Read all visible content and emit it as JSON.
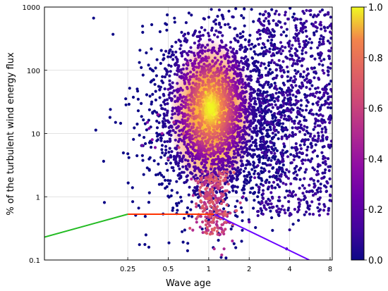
{
  "chart_data": {
    "type": "scatter",
    "title": "",
    "xlabel": "Wave age",
    "ylabel": "% of the turbulent wind energy flux",
    "x_scale": "log2",
    "y_scale": "log10",
    "xlim": [
      0.06,
      8.3
    ],
    "ylim": [
      0.1,
      1000
    ],
    "x_ticks": [
      0.25,
      0.5,
      1,
      2,
      4,
      8
    ],
    "x_tick_labels": [
      "0.25",
      "0.5",
      "1",
      "2",
      "4",
      "8"
    ],
    "y_ticks": [
      0.1,
      1,
      10,
      100,
      1000
    ],
    "y_tick_labels": [
      "0.1",
      "1",
      "10",
      "100",
      "1000"
    ],
    "grid": true,
    "colorbar": {
      "label": "",
      "range": [
        0,
        1
      ],
      "ticks": [
        0.0,
        0.2,
        0.4,
        0.6,
        0.8,
        1.0
      ],
      "tick_labels": [
        "0.0",
        "0.2",
        "0.4",
        "0.6",
        "0.8",
        "1.0"
      ],
      "colormap": "plasma"
    },
    "density_cloud": {
      "center_x": 1.05,
      "center_y": 25,
      "note_values": "points colored by normalized point density"
    },
    "scatter_points": [
      [
        1.0,
        30,
        1.0
      ],
      [
        1.1,
        20,
        1.0
      ],
      [
        0.95,
        45,
        0.97
      ],
      [
        1.2,
        15,
        0.96
      ],
      [
        0.9,
        12,
        0.93
      ],
      [
        1.05,
        60,
        0.92
      ],
      [
        0.85,
        25,
        0.9
      ],
      [
        1.3,
        35,
        0.88
      ],
      [
        0.8,
        8,
        0.85
      ],
      [
        1.15,
        8,
        0.86
      ],
      [
        1.0,
        5,
        0.82
      ],
      [
        0.75,
        18,
        0.8
      ],
      [
        1.35,
        60,
        0.75
      ],
      [
        0.7,
        40,
        0.72
      ],
      [
        1.25,
        90,
        0.7
      ],
      [
        1.05,
        3,
        0.7
      ],
      [
        0.65,
        10,
        0.68
      ],
      [
        1.5,
        20,
        0.62
      ],
      [
        0.6,
        6,
        0.6
      ],
      [
        0.95,
        2,
        0.62
      ],
      [
        1.1,
        1.5,
        0.6
      ],
      [
        1.0,
        1,
        0.58
      ],
      [
        1.15,
        0.8,
        0.55
      ],
      [
        1.05,
        0.5,
        0.52
      ],
      [
        0.98,
        0.3,
        0.5
      ],
      [
        1.2,
        0.25,
        0.45
      ],
      [
        1.3,
        0.15,
        0.48
      ],
      [
        1.25,
        0.12,
        0.52
      ],
      [
        1.5,
        0.2,
        0.45
      ],
      [
        1.4,
        0.4,
        0.4
      ],
      [
        0.55,
        15,
        0.5
      ],
      [
        0.5,
        4,
        0.45
      ],
      [
        0.45,
        10,
        0.4
      ],
      [
        0.42,
        20,
        0.38
      ],
      [
        0.38,
        8,
        0.35
      ],
      [
        0.35,
        15,
        0.3
      ],
      [
        0.4,
        6,
        0.32
      ],
      [
        0.36,
        12,
        0.3
      ],
      [
        0.7,
        130,
        0.4
      ],
      [
        0.8,
        150,
        0.45
      ],
      [
        1.0,
        160,
        0.5
      ],
      [
        1.3,
        170,
        0.4
      ],
      [
        1.6,
        120,
        0.35
      ],
      [
        1.8,
        60,
        0.3
      ],
      [
        2.0,
        30,
        0.25
      ],
      [
        1.7,
        8,
        0.35
      ],
      [
        1.5,
        3,
        0.35
      ],
      [
        1.8,
        1,
        0.3
      ],
      [
        2.2,
        2,
        0.2
      ],
      [
        2.5,
        5,
        0.18
      ],
      [
        2.8,
        15,
        0.15
      ],
      [
        3.0,
        40,
        0.12
      ],
      [
        3.5,
        80,
        0.1
      ],
      [
        4.0,
        200,
        0.08
      ],
      [
        5.0,
        400,
        0.05
      ],
      [
        6.0,
        700,
        0.03
      ],
      [
        7.0,
        900,
        0.02
      ],
      [
        4.5,
        30,
        0.1
      ],
      [
        5.5,
        8,
        0.05
      ],
      [
        6.5,
        3,
        0.04
      ],
      [
        3.2,
        0.6,
        0.12
      ],
      [
        4.0,
        0.3,
        0.08
      ],
      [
        2.5,
        0.8,
        0.18
      ],
      [
        2.0,
        0.4,
        0.22
      ],
      [
        5.0,
        1.5,
        0.06
      ],
      [
        7.5,
        50,
        0.02
      ],
      [
        8.0,
        3,
        0.01
      ],
      [
        3.8,
        0.15,
        0.1
      ],
      [
        0.65,
        350,
        0.1
      ],
      [
        0.6,
        300,
        0.08
      ],
      [
        0.48,
        200,
        0.05
      ],
      [
        0.5,
        50,
        0.2
      ],
      [
        0.32,
        6.5,
        0.25
      ],
      [
        6.0,
        20,
        0.04
      ],
      [
        2.3,
        400,
        0.08
      ],
      [
        1.2,
        900,
        0.05
      ],
      [
        1.5,
        700,
        0.06
      ],
      [
        2.0,
        250,
        0.15
      ],
      [
        0.9,
        0.4,
        0.55
      ],
      [
        1.1,
        0.15,
        0.5
      ]
    ],
    "lines": [
      {
        "color": "#22bb22",
        "x": [
          0.06,
          0.25
        ],
        "y": [
          0.23,
          0.53
        ]
      },
      {
        "color": "#ff3300",
        "x": [
          0.25,
          1.1
        ],
        "y": [
          0.53,
          0.53
        ]
      },
      {
        "color": "#6a00ff",
        "x": [
          1.1,
          5.6
        ],
        "y": [
          0.53,
          0.1
        ]
      }
    ]
  }
}
